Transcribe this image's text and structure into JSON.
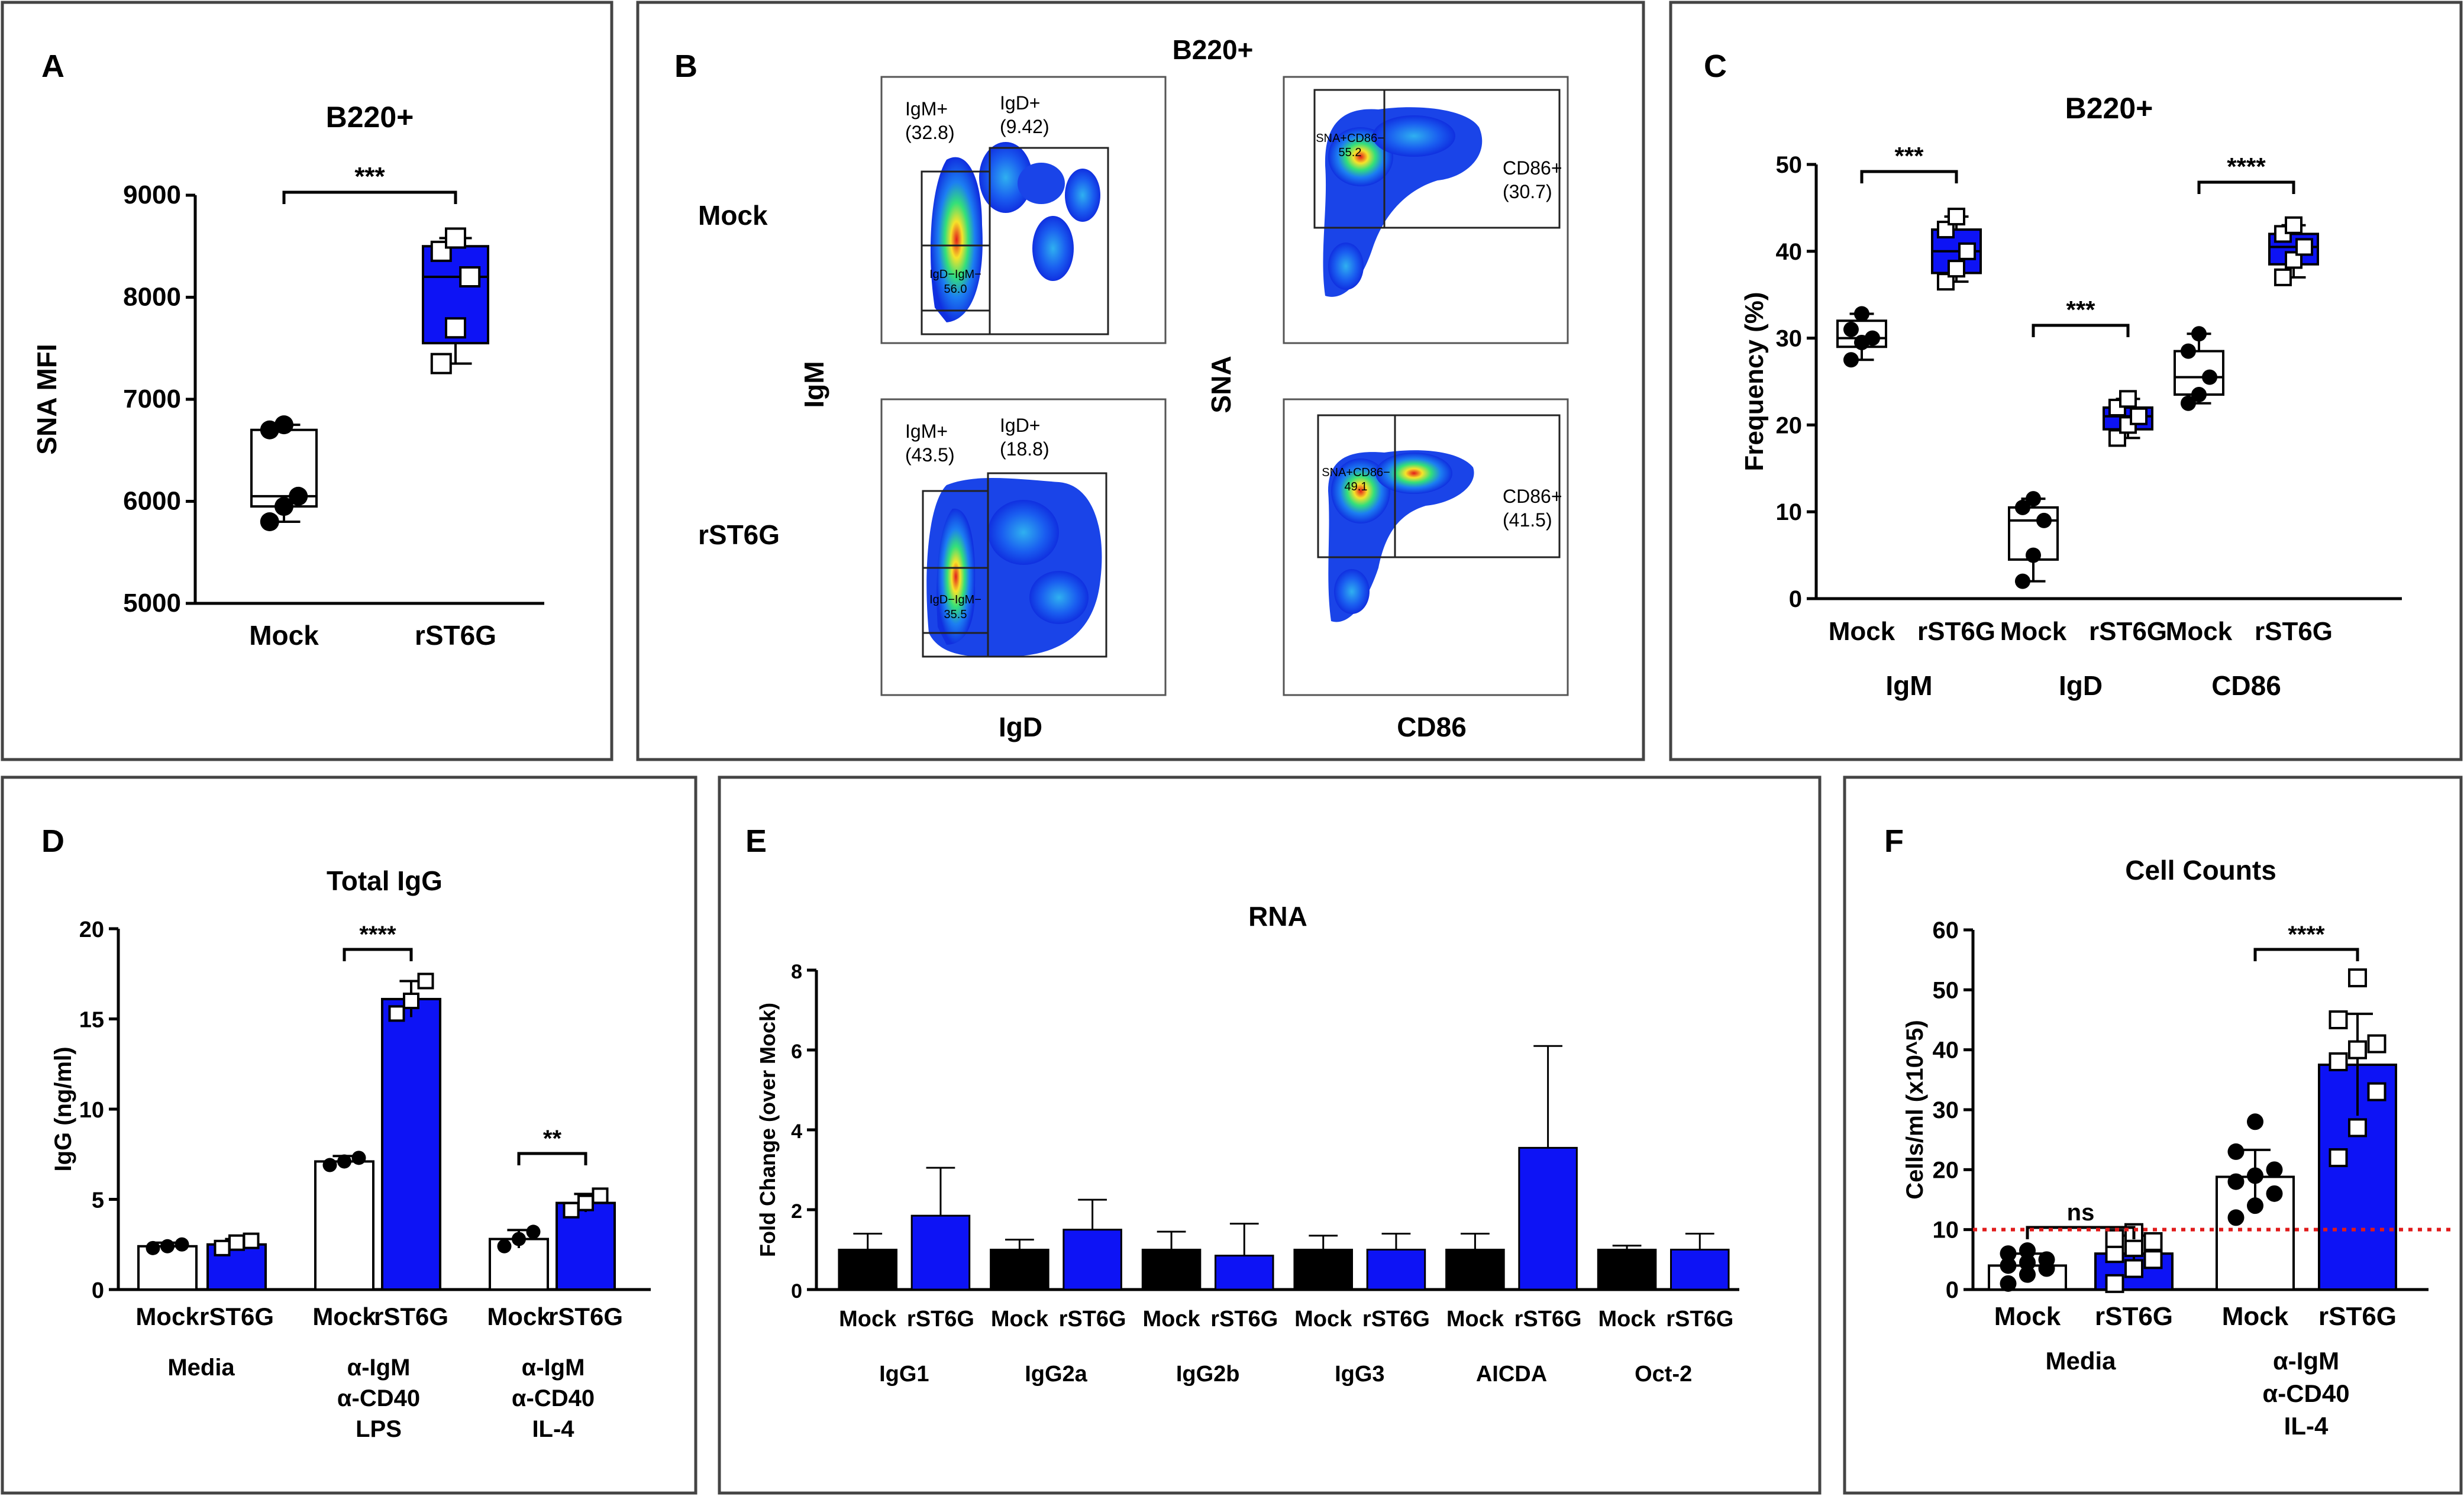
{
  "colors": {
    "blue": "#0d13f5",
    "black": "#000000",
    "white": "#ffffff",
    "threshold": "#e01b1b",
    "panel_border": "#444444"
  },
  "panels": {
    "A": {
      "letter": "A",
      "chart_type": "box",
      "title": "B220+",
      "ylabel": "SNA MFI",
      "ylim": [
        5000,
        9000
      ],
      "ticks": [
        "5000",
        "6000",
        "7000",
        "8000",
        "9000"
      ],
      "groups": [
        {
          "label": "Mock",
          "fill": "white",
          "marker": "circle",
          "min": 5800,
          "q1": 5950,
          "median": 6050,
          "q3": 6700,
          "max": 6750,
          "points": [
            5800,
            5950,
            6050,
            6700,
            6750
          ]
        },
        {
          "label": "rST6G",
          "fill": "blue",
          "marker": "square",
          "min": 7350,
          "q1": 7550,
          "median": 8200,
          "q3": 8500,
          "max": 8580,
          "points": [
            7350,
            7700,
            8200,
            8450,
            8580
          ]
        }
      ],
      "sig": [
        {
          "label": "***",
          "from": 0,
          "to": 1
        }
      ]
    },
    "B": {
      "letter": "B",
      "title": "B220+",
      "rows": [
        "Mock",
        "rST6G"
      ],
      "left_ylabel": "IgM",
      "right_ylabel": "SNA",
      "left_xlabel": "IgD",
      "right_xlabel": "CD86",
      "gates": {
        "mock_left": {
          "g1": "IgM+",
          "v1": "(32.8)",
          "g2": "IgD+",
          "v2": "(9.42)",
          "g3": "IgD−IgM−",
          "v3": "56.0"
        },
        "mock_right": {
          "g1": "SNA+CD86−",
          "v1": "55.2",
          "g2": "CD86+",
          "v2": "(30.7)"
        },
        "rst_left": {
          "g1": "IgM+",
          "v1": "(43.5)",
          "g2": "IgD+",
          "v2": "(18.8)",
          "g3": "IgD−IgM−",
          "v3": "35.5"
        },
        "rst_right": {
          "g1": "SNA+CD86−",
          "v1": "49.1",
          "g2": "CD86+",
          "v2": "(41.5)"
        }
      }
    },
    "C": {
      "letter": "C",
      "chart_type": "box",
      "title": "B220+",
      "ylabel": "Frequency (%)",
      "ylim": [
        0,
        50
      ],
      "ticks": [
        "0",
        "10",
        "20",
        "30",
        "40",
        "50"
      ],
      "group_labels": [
        "IgM",
        "IgD",
        "CD86"
      ],
      "groups": [
        {
          "label": "Mock",
          "fill": "white",
          "marker": "circle",
          "min": 27.5,
          "q1": 29,
          "median": 30,
          "q3": 32,
          "max": 32.8,
          "points": [
            27.5,
            29.5,
            30,
            31,
            32.8
          ]
        },
        {
          "label": "rST6G",
          "fill": "blue",
          "marker": "square",
          "min": 36.5,
          "q1": 37.5,
          "median": 40,
          "q3": 42.5,
          "max": 44,
          "points": [
            36.5,
            38,
            40,
            42.5,
            44
          ]
        },
        {
          "label": "Mock",
          "fill": "white",
          "marker": "circle",
          "min": 2,
          "q1": 4.5,
          "median": 9,
          "q3": 10.5,
          "max": 11.5,
          "points": [
            2,
            5,
            9,
            10.5,
            11.5
          ]
        },
        {
          "label": "rST6G",
          "fill": "blue",
          "marker": "square",
          "min": 18.5,
          "q1": 19.5,
          "median": 21,
          "q3": 22,
          "max": 23,
          "points": [
            18.5,
            20,
            21,
            22,
            23
          ]
        },
        {
          "label": "Mock",
          "fill": "white",
          "marker": "circle",
          "min": 22.5,
          "q1": 23.5,
          "median": 25.5,
          "q3": 28.5,
          "max": 30.5,
          "points": [
            22.5,
            23.5,
            25.5,
            28.5,
            30.5
          ]
        },
        {
          "label": "rST6G",
          "fill": "blue",
          "marker": "square",
          "min": 37,
          "q1": 38.5,
          "median": 40.5,
          "q3": 42,
          "max": 43,
          "points": [
            37,
            39,
            40.5,
            42,
            43
          ]
        }
      ],
      "sig": [
        {
          "label": "***",
          "from": 0,
          "to": 1
        },
        {
          "label": "***",
          "from": 2,
          "to": 3
        },
        {
          "label": "****",
          "from": 4,
          "to": 5
        }
      ]
    },
    "D": {
      "letter": "D",
      "chart_type": "bar",
      "title": "Total IgG",
      "ylabel": "IgG (ng/ml)",
      "ylim": [
        0,
        20
      ],
      "ticks": [
        "0",
        "5",
        "10",
        "15",
        "20"
      ],
      "groups": [
        {
          "label": "Mock",
          "fill": "white",
          "marker": "circle",
          "value": 2.4,
          "err": 0.2,
          "points": [
            2.3,
            2.4,
            2.5
          ]
        },
        {
          "label": "rST6G",
          "fill": "blue",
          "marker": "square",
          "value": 2.5,
          "err": 0.3,
          "points": [
            2.3,
            2.6,
            2.7
          ]
        },
        {
          "label": "Mock",
          "fill": "white",
          "marker": "circle",
          "value": 7.1,
          "err": 0.3,
          "points": [
            6.9,
            7.1,
            7.3
          ]
        },
        {
          "label": "rST6G",
          "fill": "blue",
          "marker": "square",
          "value": 16.1,
          "err": 1.0,
          "points": [
            15.3,
            16.0,
            17.1
          ]
        },
        {
          "label": "Mock",
          "fill": "white",
          "marker": "circle",
          "value": 2.8,
          "err": 0.5,
          "points": [
            2.4,
            2.8,
            3.2
          ]
        },
        {
          "label": "rST6G",
          "fill": "blue",
          "marker": "square",
          "value": 4.8,
          "err": 0.5,
          "points": [
            4.4,
            4.8,
            5.2
          ]
        }
      ],
      "conditions": [
        [
          "Media"
        ],
        [
          "α-IgM",
          "α-CD40",
          "LPS"
        ],
        [
          "α-IgM",
          "α-CD40",
          "IL-4"
        ]
      ],
      "sig": [
        {
          "label": "****",
          "from": 2,
          "to": 3
        },
        {
          "label": "**",
          "from": 4,
          "to": 5
        }
      ]
    },
    "E": {
      "letter": "E",
      "chart_type": "bar",
      "title": "RNA",
      "ylabel": "Fold Change (over Mock)",
      "ylim": [
        0,
        8
      ],
      "ticks": [
        "0",
        "2",
        "4",
        "6",
        "8"
      ],
      "genes": [
        "IgG1",
        "IgG2a",
        "IgG2b",
        "IgG3",
        "AICDA",
        "Oct-2"
      ],
      "bar_labels": [
        "Mock",
        "rST6G"
      ],
      "series": [
        {
          "name": "Mock",
          "fill": "black",
          "values": [
            1.0,
            1.0,
            1.0,
            1.0,
            1.0,
            1.0
          ],
          "err": [
            0.4,
            0.25,
            0.45,
            0.35,
            0.4,
            0.1
          ]
        },
        {
          "name": "rST6G",
          "fill": "blue",
          "values": [
            1.85,
            1.5,
            0.85,
            1.0,
            3.55,
            1.0
          ],
          "err": [
            1.2,
            0.75,
            0.8,
            0.4,
            2.55,
            0.4
          ]
        }
      ]
    },
    "F": {
      "letter": "F",
      "chart_type": "bar",
      "title": "Cell Counts",
      "ylabel": "Cells/ml (x10^5)",
      "ylim": [
        0,
        60
      ],
      "ticks": [
        "0",
        "10",
        "20",
        "30",
        "40",
        "50",
        "60"
      ],
      "threshold": 10,
      "groups": [
        {
          "label": "Mock",
          "fill": "white",
          "marker": "circle",
          "value": 4,
          "err": 2,
          "points": [
            1,
            2.5,
            3.5,
            4,
            4.5,
            5,
            6,
            6.5
          ]
        },
        {
          "label": "rST6G",
          "fill": "blue",
          "marker": "square",
          "value": 6,
          "err": 3,
          "points": [
            1,
            3.5,
            5,
            6,
            7,
            8,
            8.5,
            9.5
          ]
        },
        {
          "label": "Mock",
          "fill": "white",
          "marker": "circle",
          "value": 18.8,
          "err": 4.5,
          "points": [
            12,
            14,
            16,
            18,
            19,
            20,
            23,
            28
          ]
        },
        {
          "label": "rST6G",
          "fill": "blue",
          "marker": "square",
          "value": 37.5,
          "err": 8.5,
          "points": [
            22,
            27,
            33,
            38,
            40,
            41,
            45,
            52
          ]
        }
      ],
      "conditions": [
        [
          "Media"
        ],
        [
          "α-IgM",
          "α-CD40",
          "IL-4"
        ]
      ],
      "sig": [
        {
          "label": "ns",
          "from": 0,
          "to": 1
        },
        {
          "label": "****",
          "from": 2,
          "to": 3
        }
      ]
    }
  },
  "chart_data": [
    {
      "panel": "A",
      "type": "box",
      "title": "B220+",
      "ylabel": "SNA MFI",
      "xlabel": "",
      "categories": [
        "Mock",
        "rST6G"
      ],
      "ylim": [
        5000,
        9000
      ],
      "medians": [
        6050,
        8200
      ]
    },
    {
      "panel": "C",
      "type": "box",
      "title": "B220+",
      "ylabel": "Frequency (%)",
      "categories": [
        "IgM Mock",
        "IgM rST6G",
        "IgD Mock",
        "IgD rST6G",
        "CD86 Mock",
        "CD86 rST6G"
      ],
      "ylim": [
        0,
        50
      ],
      "medians": [
        30,
        40,
        9,
        21,
        25.5,
        40.5
      ]
    },
    {
      "panel": "D",
      "type": "bar",
      "title": "Total IgG",
      "ylabel": "IgG (ng/ml)",
      "categories": [
        "Media Mock",
        "Media rST6G",
        "α-IgM α-CD40 LPS Mock",
        "α-IgM α-CD40 LPS rST6G",
        "α-IgM α-CD40 IL-4 Mock",
        "α-IgM α-CD40 IL-4 rST6G"
      ],
      "values": [
        2.4,
        2.5,
        7.1,
        16.1,
        2.8,
        4.8
      ],
      "ylim": [
        0,
        20
      ]
    },
    {
      "panel": "E",
      "type": "bar",
      "title": "RNA",
      "ylabel": "Fold Change (over Mock)",
      "categories": [
        "IgG1",
        "IgG2a",
        "IgG2b",
        "IgG3",
        "AICDA",
        "Oct-2"
      ],
      "series": [
        {
          "name": "Mock",
          "values": [
            1,
            1,
            1,
            1,
            1,
            1
          ]
        },
        {
          "name": "rST6G",
          "values": [
            1.85,
            1.5,
            0.85,
            1.0,
            3.55,
            1.0
          ]
        }
      ],
      "ylim": [
        0,
        8
      ]
    },
    {
      "panel": "F",
      "type": "bar",
      "title": "Cell Counts",
      "ylabel": "Cells/ml (x10^5)",
      "categories": [
        "Media Mock",
        "Media rST6G",
        "α-IgM α-CD40 IL-4 Mock",
        "α-IgM α-CD40 IL-4 rST6G"
      ],
      "values": [
        4,
        6,
        18.8,
        37.5
      ],
      "threshold": 10,
      "ylim": [
        0,
        60
      ]
    }
  ]
}
